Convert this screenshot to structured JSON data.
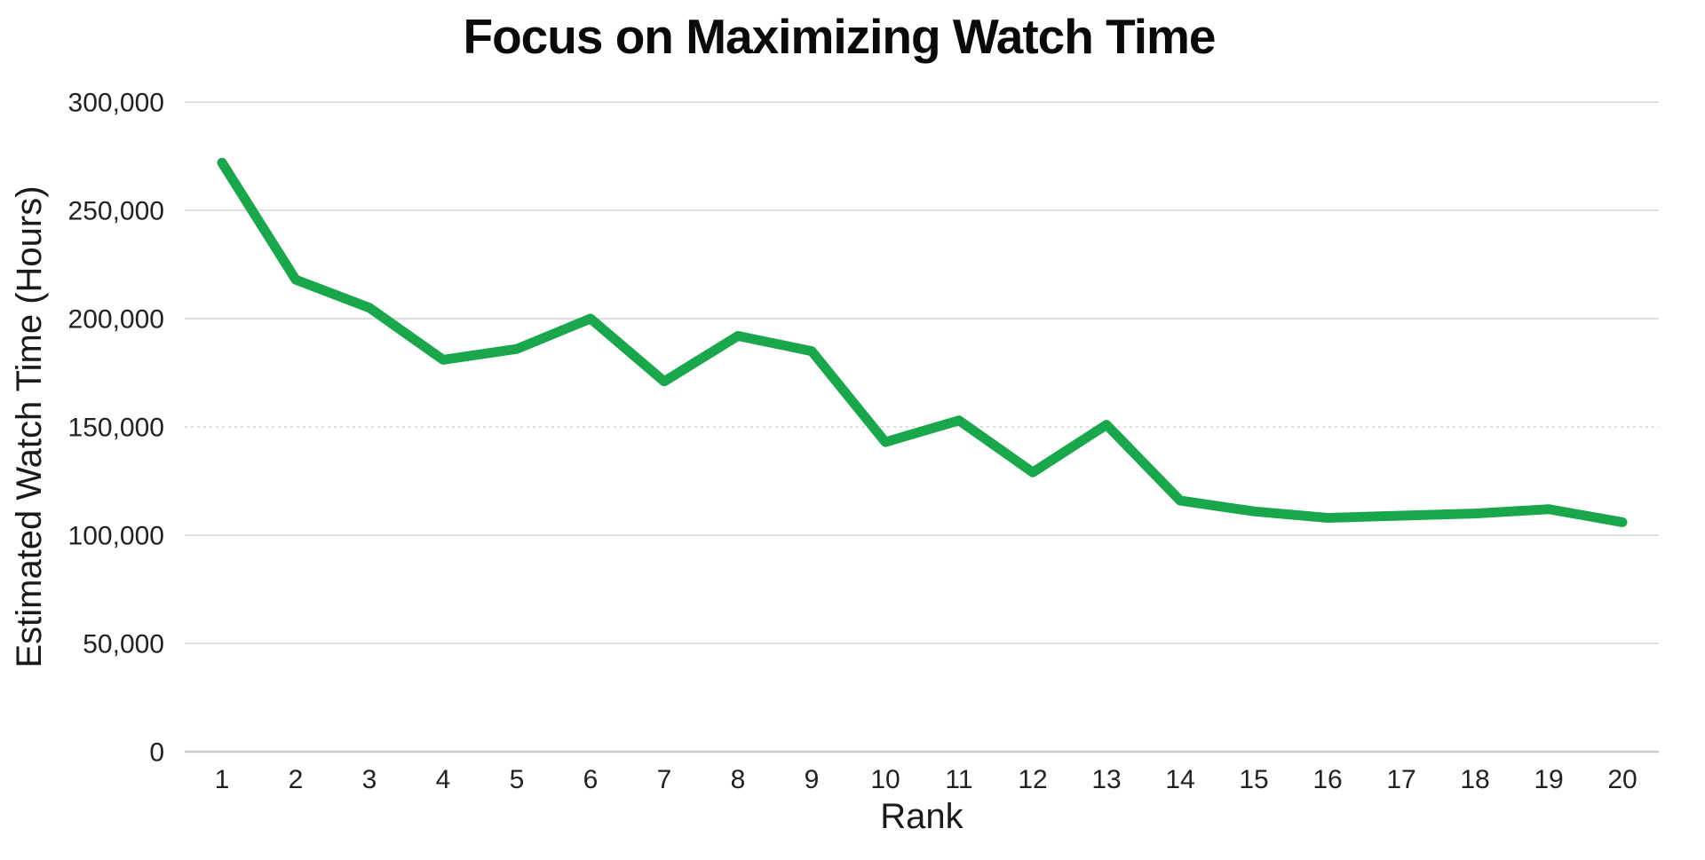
{
  "chart_data": {
    "type": "line",
    "title": "Focus on Maximizing Watch Time",
    "xlabel": "Rank",
    "ylabel": "Estimated Watch Time (Hours)",
    "x": [
      1,
      2,
      3,
      4,
      5,
      6,
      7,
      8,
      9,
      10,
      11,
      12,
      13,
      14,
      15,
      16,
      17,
      18,
      19,
      20
    ],
    "x_tick_labels": [
      "1",
      "2",
      "3",
      "4",
      "5",
      "6",
      "7",
      "8",
      "9",
      "10",
      "11",
      "12",
      "13",
      "14",
      "15",
      "16",
      "17",
      "18",
      "19",
      "20"
    ],
    "series": [
      {
        "name": "Estimated Watch Time",
        "color": "#1AA64B",
        "values": [
          272000,
          218000,
          205000,
          181000,
          186000,
          200000,
          171000,
          192000,
          185000,
          143000,
          153000,
          129000,
          151000,
          116000,
          111000,
          108000,
          109000,
          110000,
          112000,
          106000
        ]
      }
    ],
    "ylim": [
      0,
      300000
    ],
    "y_ticks": [
      0,
      50000,
      100000,
      150000,
      200000,
      250000,
      300000
    ],
    "y_tick_labels": [
      "0",
      "50,000",
      "100,000",
      "150,000",
      "200,000",
      "250,000",
      "300,000"
    ],
    "grid": "horizontal",
    "legend": "none",
    "styles": {
      "line_color": "#1AA64B",
      "line_width": 11,
      "gridline_color": "#DEDEDE",
      "axis_line_color": "#CBCBCB",
      "dashed_gridline_values": [
        150000
      ],
      "text_color": "#222222",
      "title_color": "#0A0A0A",
      "background": "#FFFFFF"
    }
  }
}
